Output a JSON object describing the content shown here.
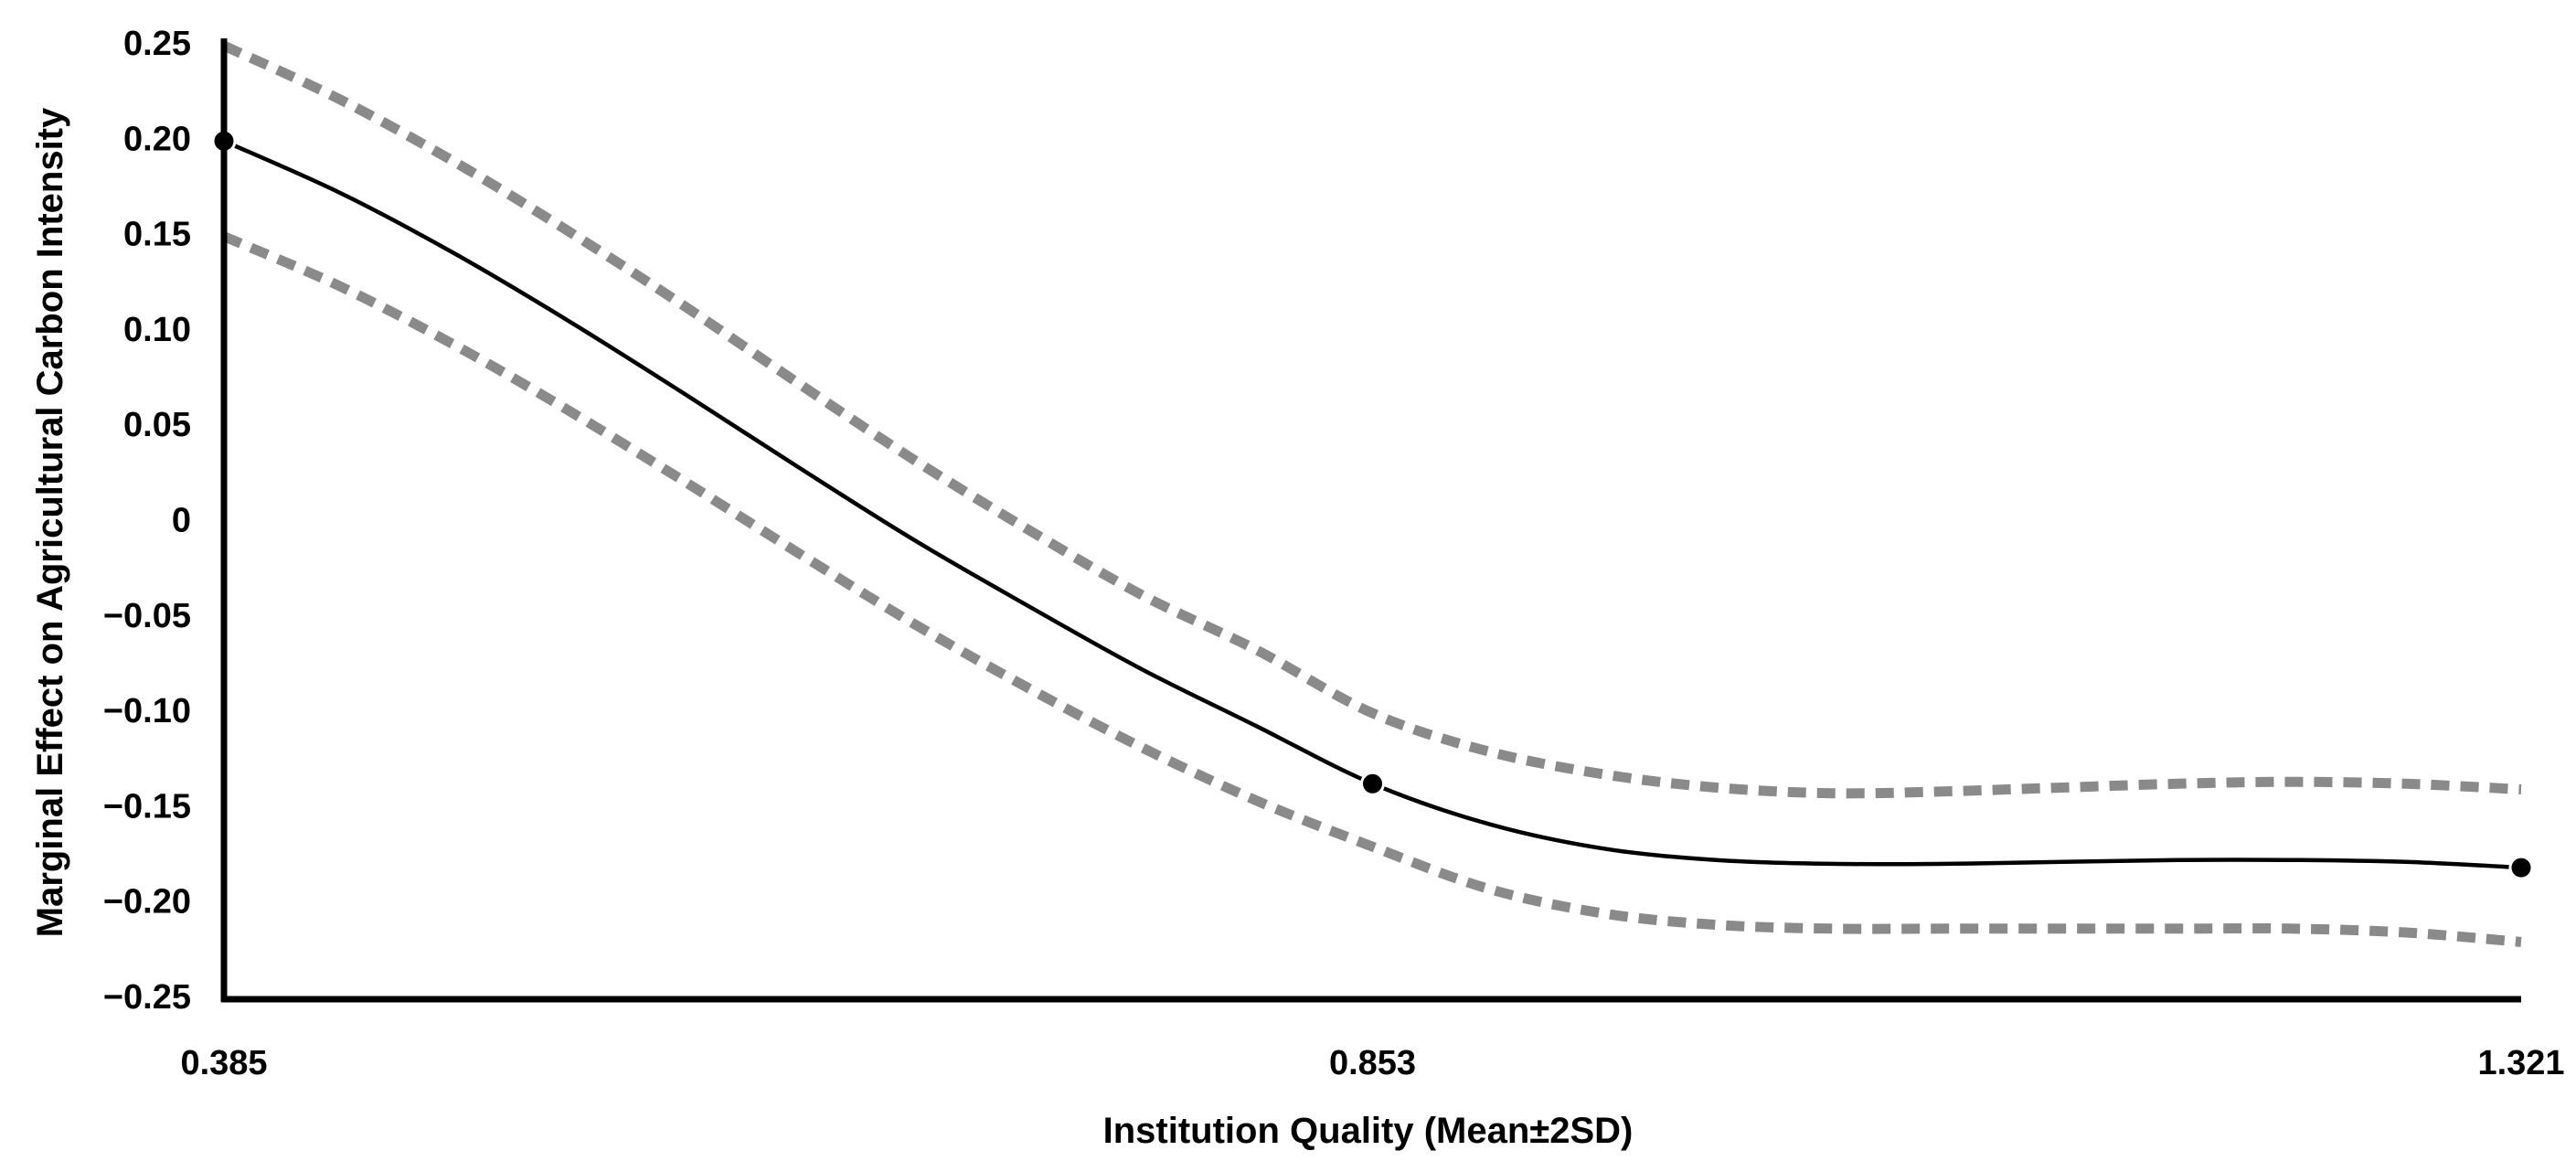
{
  "chart_data": {
    "type": "line",
    "title": "",
    "xlabel": "Institution Quality (Mean±2SD)",
    "ylabel": "Marginal Effect on Agricultural Carbon Intensity",
    "x_ticks": [
      "0.385",
      "0.853",
      "1.321"
    ],
    "y_ticks": [
      "0.25",
      "0.20",
      "0.15",
      "0.10",
      "0.05",
      "0",
      "−0.05",
      "−0.10",
      "−0.15",
      "−0.20",
      "−0.25"
    ],
    "xlim": [
      0.385,
      1.321
    ],
    "ylim": [
      -0.25,
      0.25
    ],
    "grid": false,
    "legend": "none",
    "colors": {
      "estimate": "#000000",
      "ci": "#8a8a8a",
      "axis": "#000000"
    },
    "series": [
      {
        "role": "upper-ci",
        "style": "dashed",
        "x": [
          0.385,
          0.432,
          0.479,
          0.525,
          0.572,
          0.619,
          0.666,
          0.713,
          0.759,
          0.806,
          0.853,
          0.9,
          0.947,
          0.993,
          1.04,
          1.087,
          1.134,
          1.181,
          1.227,
          1.274,
          1.321
        ],
        "y": [
          0.25,
          0.222,
          0.189,
          0.153,
          0.114,
          0.073,
          0.033,
          -0.004,
          -0.038,
          -0.067,
          -0.1,
          -0.12,
          -0.132,
          -0.139,
          -0.142,
          -0.141,
          -0.139,
          -0.137,
          -0.136,
          -0.137,
          -0.14
        ]
      },
      {
        "role": "estimate",
        "style": "solid",
        "x": [
          0.385,
          0.432,
          0.479,
          0.525,
          0.572,
          0.619,
          0.666,
          0.713,
          0.759,
          0.806,
          0.853,
          0.9,
          0.947,
          0.993,
          1.04,
          1.087,
          1.134,
          1.181,
          1.227,
          1.274,
          1.321
        ],
        "y": [
          0.2,
          0.173,
          0.141,
          0.106,
          0.068,
          0.029,
          -0.009,
          -0.044,
          -0.077,
          -0.107,
          -0.137,
          -0.158,
          -0.171,
          -0.177,
          -0.179,
          -0.179,
          -0.178,
          -0.177,
          -0.177,
          -0.178,
          -0.181
        ]
      },
      {
        "role": "lower-ci",
        "style": "dashed",
        "x": [
          0.385,
          0.432,
          0.479,
          0.525,
          0.572,
          0.619,
          0.666,
          0.713,
          0.759,
          0.806,
          0.853,
          0.9,
          0.947,
          0.993,
          1.04,
          1.087,
          1.134,
          1.181,
          1.227,
          1.274,
          1.321
        ],
        "y": [
          0.15,
          0.124,
          0.093,
          0.059,
          0.022,
          -0.016,
          -0.053,
          -0.087,
          -0.118,
          -0.146,
          -0.17,
          -0.192,
          -0.205,
          -0.211,
          -0.213,
          -0.213,
          -0.213,
          -0.213,
          -0.213,
          -0.215,
          -0.22
        ]
      }
    ],
    "markers": {
      "x": [
        0.385,
        0.853,
        1.321
      ],
      "y": [
        0.2,
        -0.137,
        -0.181
      ]
    }
  }
}
